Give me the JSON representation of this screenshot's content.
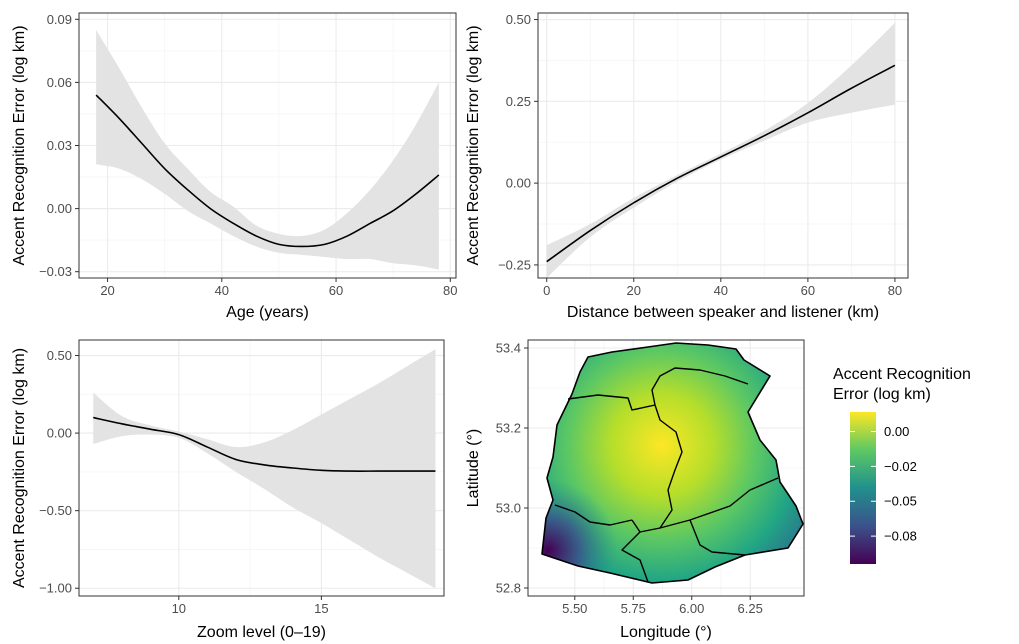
{
  "colors": {
    "ribbon": "#e3e3e3",
    "line": "#000000",
    "grid_major": "#ebebeb",
    "grid_minor": "#f5f5f5",
    "panel_border": "#333333",
    "viridis": [
      "#440154",
      "#3b528b",
      "#21908d",
      "#5dc863",
      "#fde725"
    ]
  },
  "chart_data": [
    {
      "type": "line",
      "title": "",
      "xlabel": "Age (years)",
      "ylabel": "Accent Recognition Error (log km)",
      "xlim": [
        15,
        81
      ],
      "ylim": [
        -0.033,
        0.093
      ],
      "xticks": [
        20,
        40,
        60,
        80
      ],
      "xtick_labels": [
        "20",
        "40",
        "60",
        "80"
      ],
      "yticks": [
        -0.03,
        0.0,
        0.03,
        0.06,
        0.09
      ],
      "ytick_labels": [
        "−0.03",
        "0.00",
        "0.03",
        "0.06",
        "0.09"
      ],
      "grid": true,
      "series": [
        {
          "x": [
            18,
            22,
            26,
            30,
            34,
            38,
            42,
            46,
            50,
            54,
            58,
            62,
            66,
            70,
            74,
            78
          ],
          "y": [
            0.054,
            0.043,
            0.031,
            0.019,
            0.009,
            0.0,
            -0.007,
            -0.013,
            -0.017,
            -0.018,
            -0.017,
            -0.013,
            -0.007,
            -0.001,
            0.007,
            0.016
          ],
          "lower": [
            0.021,
            0.019,
            0.014,
            0.007,
            -0.001,
            -0.007,
            -0.013,
            -0.018,
            -0.021,
            -0.022,
            -0.023,
            -0.024,
            -0.024,
            -0.026,
            -0.027,
            -0.029
          ],
          "upper": [
            0.085,
            0.067,
            0.048,
            0.031,
            0.019,
            0.008,
            0.001,
            -0.008,
            -0.012,
            -0.013,
            -0.01,
            -0.002,
            0.009,
            0.023,
            0.04,
            0.06
          ]
        }
      ]
    },
    {
      "type": "line",
      "title": "",
      "xlabel": "Distance between speaker and listener (km)",
      "ylabel": "Accent Recognition Error (log km)",
      "xlim": [
        -2,
        83
      ],
      "ylim": [
        -0.29,
        0.52
      ],
      "xticks": [
        0,
        20,
        40,
        60,
        80
      ],
      "xtick_labels": [
        "0",
        "20",
        "40",
        "60",
        "80"
      ],
      "yticks": [
        -0.25,
        0.0,
        0.25,
        0.5
      ],
      "ytick_labels": [
        "−0.25",
        "0.00",
        "0.25",
        "0.50"
      ],
      "grid": true,
      "series": [
        {
          "x": [
            0,
            10,
            20,
            30,
            40,
            50,
            60,
            70,
            80
          ],
          "y": [
            -0.24,
            -0.145,
            -0.06,
            0.015,
            0.08,
            0.145,
            0.215,
            0.29,
            0.36
          ],
          "lower": [
            -0.29,
            -0.165,
            -0.075,
            0.005,
            0.072,
            0.13,
            0.185,
            0.215,
            0.24
          ],
          "upper": [
            -0.19,
            -0.125,
            -0.045,
            0.025,
            0.09,
            0.16,
            0.245,
            0.36,
            0.49
          ]
        }
      ]
    },
    {
      "type": "line",
      "title": "",
      "xlabel": "Zoom level (0–19)",
      "ylabel": "Accent Recognition Error (log km)",
      "xlim": [
        6.5,
        19.3
      ],
      "ylim": [
        -1.05,
        0.6
      ],
      "xticks": [
        10,
        15
      ],
      "xtick_labels": [
        "10",
        "15"
      ],
      "yticks": [
        -1.0,
        -0.5,
        0.0,
        0.5
      ],
      "ytick_labels": [
        "−1.00",
        "−0.50",
        "0.00",
        "0.50"
      ],
      "grid": true,
      "series": [
        {
          "x": [
            7,
            8,
            9,
            10,
            11,
            12,
            13,
            14,
            15,
            16,
            17,
            18,
            19
          ],
          "y": [
            0.1,
            0.06,
            0.025,
            -0.01,
            -0.09,
            -0.17,
            -0.205,
            -0.225,
            -0.24,
            -0.245,
            -0.245,
            -0.245,
            -0.245
          ],
          "lower": [
            -0.07,
            -0.02,
            -0.01,
            -0.03,
            -0.13,
            -0.25,
            -0.36,
            -0.48,
            -0.58,
            -0.69,
            -0.8,
            -0.9,
            -1.0
          ],
          "upper": [
            0.26,
            0.11,
            0.05,
            0.01,
            -0.04,
            -0.09,
            -0.06,
            0.02,
            0.12,
            0.22,
            0.32,
            0.43,
            0.54
          ]
        }
      ]
    },
    {
      "type": "heatmap",
      "title": "",
      "xlabel": "Longitude (°)",
      "ylabel": "Latitude (°)",
      "xlim": [
        5.3,
        6.48
      ],
      "ylim": [
        52.78,
        53.42
      ],
      "xticks": [
        5.5,
        5.75,
        6.0,
        6.25
      ],
      "xtick_labels": [
        "5.50",
        "5.75",
        "6.00",
        "6.25"
      ],
      "yticks": [
        52.8,
        53.0,
        53.2,
        53.4
      ],
      "ytick_labels": [
        "52.8",
        "53.0",
        "53.2",
        "53.4"
      ],
      "grid": true,
      "legend": {
        "title_lines": [
          "Accent Recognition",
          "Error (log km)"
        ],
        "position": "right",
        "breaks": [
          0.0,
          -0.025,
          -0.05,
          -0.075
        ],
        "break_labels": [
          "0.00",
          "−0.02",
          "−0.05",
          "−0.08"
        ],
        "range": [
          -0.095,
          0.014
        ]
      },
      "value_peak": {
        "lon": 5.87,
        "lat": 53.13,
        "value": 0.012
      },
      "value_min_corner": {
        "lon": 5.42,
        "lat": 52.88,
        "value": -0.09
      }
    }
  ]
}
